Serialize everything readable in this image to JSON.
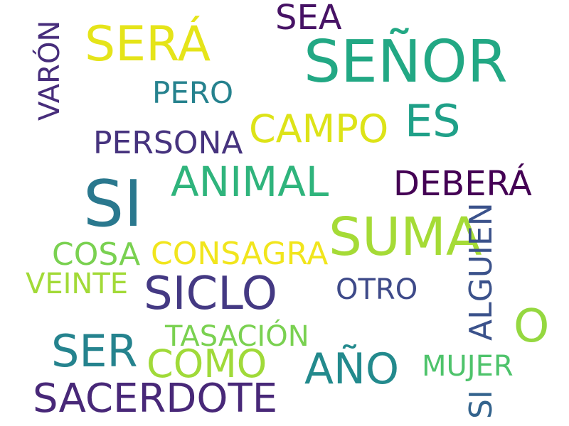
{
  "words": [
    {
      "text": "SI",
      "color": "#2a788e"
    },
    {
      "text": "SEÑOR",
      "color": "#22a884"
    },
    {
      "text": "SUMA",
      "color": "#a5db36"
    },
    {
      "text": "SERÁ",
      "color": "#e5e419"
    },
    {
      "text": "SICLO",
      "color": "#443983"
    },
    {
      "text": "ANIMAL",
      "color": "#2fb47c"
    },
    {
      "text": "AÑO",
      "color": "#238a8d"
    },
    {
      "text": "SER",
      "color": "#25838e"
    },
    {
      "text": "SACERDOTE",
      "color": "#482878"
    },
    {
      "text": "COMO",
      "color": "#a0da39"
    },
    {
      "text": "CAMPO",
      "color": "#dde318"
    },
    {
      "text": "ES",
      "color": "#1fa088"
    },
    {
      "text": "DEBERÁ",
      "color": "#440154"
    },
    {
      "text": "O",
      "color": "#95d840"
    },
    {
      "text": "SEA",
      "color": "#471365"
    },
    {
      "text": "CONSAGRA",
      "color": "#f1e51d"
    },
    {
      "text": "PERSONA",
      "color": "#46337e"
    },
    {
      "text": "PERO",
      "color": "#26828e"
    },
    {
      "text": "COSA",
      "color": "#7ad151"
    },
    {
      "text": "ALGUIEN",
      "color": "#3b528b"
    },
    {
      "text": "SI",
      "color": "#33638d"
    },
    {
      "text": "VARÓN",
      "color": "#472d7b"
    },
    {
      "text": "TASACIÓN",
      "color": "#7ad151"
    },
    {
      "text": "VEINTE",
      "color": "#a2da37"
    },
    {
      "text": "OTRO",
      "color": "#3e4a89"
    },
    {
      "text": "MUJER",
      "color": "#4ec36b"
    }
  ]
}
